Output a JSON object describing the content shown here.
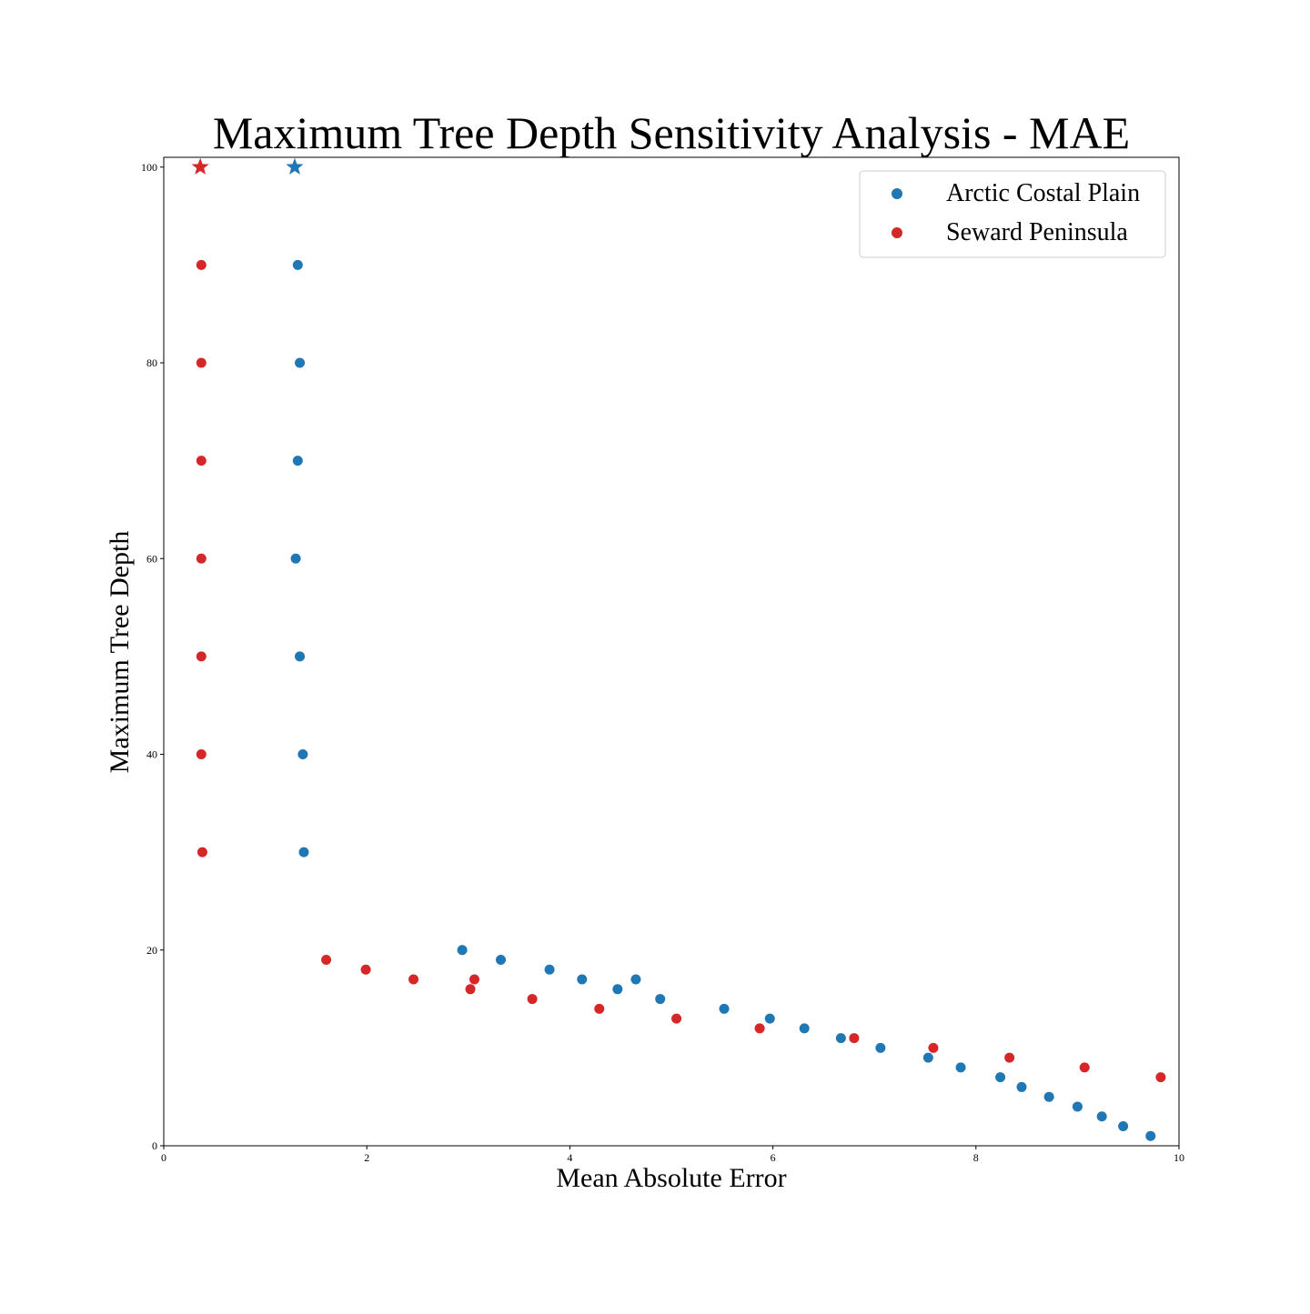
{
  "chart_data": {
    "type": "scatter",
    "title": "Maximum Tree Depth Sensitivity Analysis - MAE",
    "xlabel": "Mean Absolute Error",
    "ylabel": "Maximum Tree Depth",
    "xlim": [
      0,
      10
    ],
    "ylim": [
      0,
      101
    ],
    "xticks": [
      "0",
      "2",
      "4",
      "6",
      "8",
      "10"
    ],
    "yticks": [
      "0",
      "20",
      "40",
      "60",
      "80",
      "100"
    ],
    "grid": false,
    "legend_position": "top-right",
    "series": [
      {
        "name": "Arctic Costal Plain",
        "color": "#1f77b4",
        "marker": "circle",
        "x": [
          1.32,
          1.34,
          1.32,
          1.3,
          1.34,
          1.37,
          1.38,
          2.94,
          3.32,
          3.8,
          4.12,
          4.47,
          4.65,
          4.89,
          5.52,
          5.97,
          6.31,
          6.67,
          7.06,
          7.53,
          7.85,
          8.24,
          8.45,
          8.72,
          9.0,
          9.24,
          9.45,
          9.72
        ],
        "y": [
          90,
          80,
          70,
          60,
          50,
          40,
          30,
          20,
          19,
          18,
          17,
          16,
          17,
          15,
          14,
          13,
          12,
          11,
          10,
          9,
          8,
          7,
          6,
          5,
          4,
          3,
          2,
          1
        ]
      },
      {
        "name": "Seward Peninsula",
        "color": "#d62728",
        "marker": "circle",
        "x": [
          0.37,
          0.37,
          0.37,
          0.37,
          0.37,
          0.37,
          0.38,
          1.6,
          1.99,
          2.46,
          3.02,
          3.06,
          3.63,
          4.29,
          5.05,
          5.87,
          6.8,
          7.58,
          8.33,
          9.07,
          9.82
        ],
        "y": [
          90,
          80,
          70,
          60,
          50,
          40,
          30,
          19,
          18,
          17,
          16,
          17,
          15,
          14,
          13,
          12,
          11,
          10,
          9,
          8,
          7
        ]
      }
    ],
    "highlights": [
      {
        "series": "Seward Peninsula",
        "color": "#d62728",
        "marker": "star",
        "x": 0.36,
        "y": 100
      },
      {
        "series": "Arctic Costal Plain",
        "color": "#1f77b4",
        "marker": "star",
        "x": 1.29,
        "y": 100
      }
    ]
  }
}
